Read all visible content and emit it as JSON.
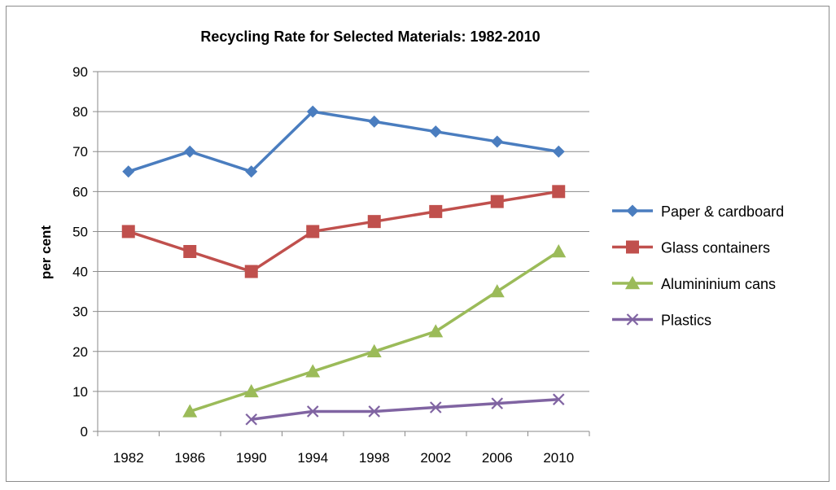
{
  "chart_data": {
    "type": "line",
    "title": "Recycling Rate for Selected Materials: 1982-2010",
    "xlabel": "",
    "ylabel": "per cent",
    "categories": [
      "1982",
      "1986",
      "1990",
      "1994",
      "1998",
      "2002",
      "2006",
      "2010"
    ],
    "ylim": [
      0,
      90
    ],
    "yticks": [
      0,
      10,
      20,
      30,
      40,
      50,
      60,
      70,
      80,
      90
    ],
    "grid": true,
    "legend_position": "right",
    "series": [
      {
        "name": "Paper & cardboard",
        "color": "#4a7dbf",
        "marker": "diamond",
        "values": [
          65,
          70,
          65,
          80,
          77.5,
          75,
          72.5,
          70
        ]
      },
      {
        "name": "Glass containers",
        "color": "#c0504d",
        "marker": "square",
        "values": [
          50,
          45,
          40,
          50,
          52.5,
          55,
          57.5,
          60
        ]
      },
      {
        "name": "Alumininium cans",
        "color": "#9bbb59",
        "marker": "triangle",
        "values": [
          null,
          5,
          10,
          15,
          20,
          25,
          35,
          45
        ]
      },
      {
        "name": "Plastics",
        "color": "#8064a2",
        "marker": "x",
        "values": [
          null,
          null,
          3,
          5,
          5,
          6,
          7,
          8
        ]
      }
    ]
  }
}
